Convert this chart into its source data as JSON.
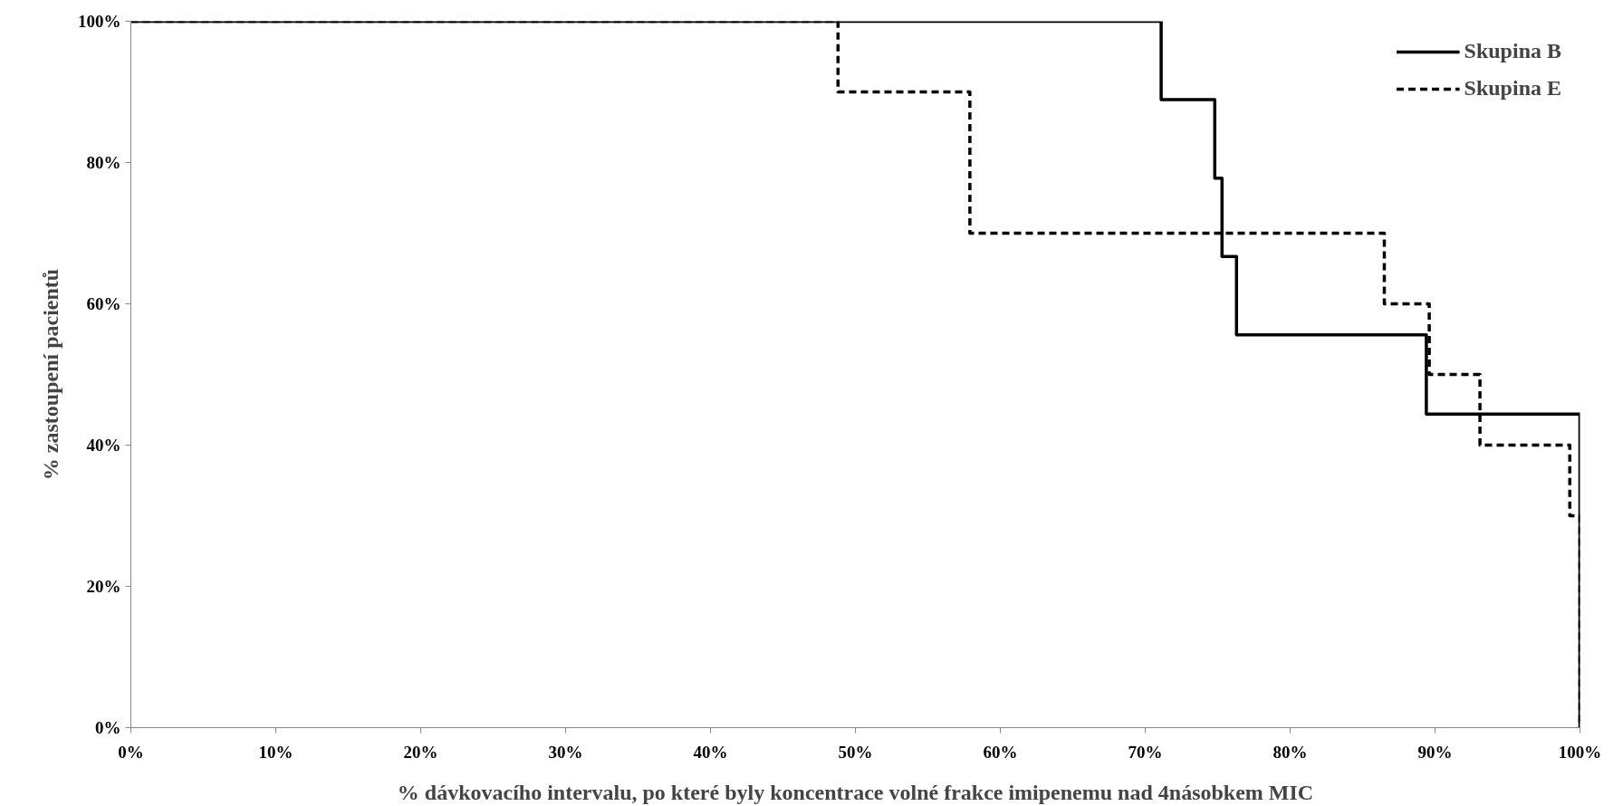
{
  "chart_data": {
    "type": "step",
    "xlabel": "% dávkovacího intervalu, po které byly koncentrace volné frakce imipenemu nad 4násobkem MIC",
    "ylabel": "% zastoupení pacientů",
    "series": [
      {
        "name": "Skupina B",
        "color": "#000000",
        "line_style": "solid",
        "x": [
          0,
          71.1,
          74.8,
          75.3,
          76.3,
          89.4,
          100
        ],
        "values": [
          100,
          88.9,
          77.8,
          66.7,
          55.6,
          44.4,
          0
        ]
      },
      {
        "name": "Skupina E",
        "color": "#000000",
        "line_style": "dashed",
        "x": [
          0,
          48.8,
          57.9,
          86.5,
          89.6,
          93.1,
          99.3,
          100
        ],
        "values": [
          100,
          90,
          70,
          60,
          50,
          40,
          30,
          0
        ]
      }
    ],
    "xlim": [
      0,
      100
    ],
    "ylim": [
      0,
      100
    ],
    "xticks": [
      {
        "value": 0,
        "label": "0%"
      },
      {
        "value": 10,
        "label": "10%"
      },
      {
        "value": 20,
        "label": "20%"
      },
      {
        "value": 30,
        "label": "30%"
      },
      {
        "value": 40,
        "label": "40%"
      },
      {
        "value": 50,
        "label": "50%"
      },
      {
        "value": 60,
        "label": "60%"
      },
      {
        "value": 70,
        "label": "70%"
      },
      {
        "value": 80,
        "label": "80%"
      },
      {
        "value": 90,
        "label": "90%"
      },
      {
        "value": 100,
        "label": "100%"
      }
    ],
    "yticks": [
      {
        "value": 0,
        "label": "0%"
      },
      {
        "value": 20,
        "label": "20%"
      },
      {
        "value": 40,
        "label": "40%"
      },
      {
        "value": 60,
        "label": "60%"
      },
      {
        "value": 80,
        "label": "80%"
      },
      {
        "value": 100,
        "label": "100%"
      }
    ],
    "grid": false,
    "legend": "top right"
  }
}
